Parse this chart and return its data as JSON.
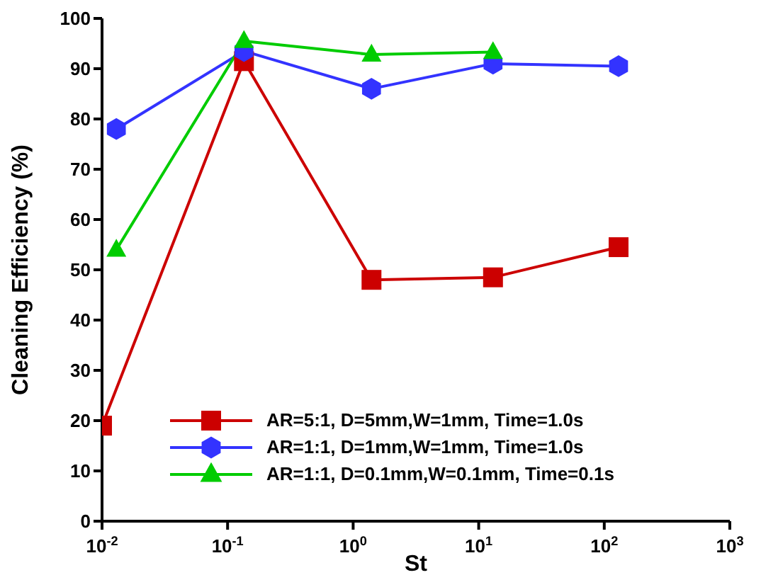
{
  "chart_data": {
    "type": "line",
    "xlabel": "St",
    "ylabel": "Cleaning Efficiency (%)",
    "log": "x",
    "xlim": [
      0.01,
      1000
    ],
    "xticks": [
      {
        "value": 0.01,
        "label": "10$^{-2}$"
      },
      {
        "value": 0.1,
        "label": "10$^{-1}$"
      },
      {
        "value": 1,
        "label": "10$^{0}$"
      },
      {
        "value": 10,
        "label": "10$^{1}$"
      },
      {
        "value": 100,
        "label": "10$^{2}$"
      },
      {
        "value": 1000,
        "label": "10$^{3}$"
      }
    ],
    "ylim": [
      0,
      100
    ],
    "yticks": [
      0,
      10,
      20,
      30,
      40,
      50,
      60,
      70,
      80,
      90,
      100
    ],
    "grid": false,
    "legend": "bottom left",
    "line_style": "solid",
    "series": [
      {
        "name": "AR=5:1, D=5mm,W=1mm, Time=1.0s",
        "color": "#cc0000",
        "marker": "square",
        "x": [
          0.01,
          0.135,
          1.4,
          13,
          130
        ],
        "values": [
          19,
          91.5,
          48,
          48.5,
          54.5
        ]
      },
      {
        "name": "AR=1:1, D=1mm,W=1mm, Time=1.0s",
        "color": "#3333ff",
        "marker": "circle",
        "x": [
          0.013,
          0.135,
          1.4,
          13,
          130
        ],
        "values": [
          78,
          93.5,
          86,
          91,
          90.5
        ]
      },
      {
        "name": "AR=1:1, D=0.1mm,W=0.1mm, Time=0.1s",
        "color": "#00cc00",
        "marker": "triangle",
        "x": [
          0.013,
          0.135,
          1.4,
          13
        ],
        "values": [
          54,
          95.5,
          92.8,
          93.3
        ]
      }
    ]
  }
}
